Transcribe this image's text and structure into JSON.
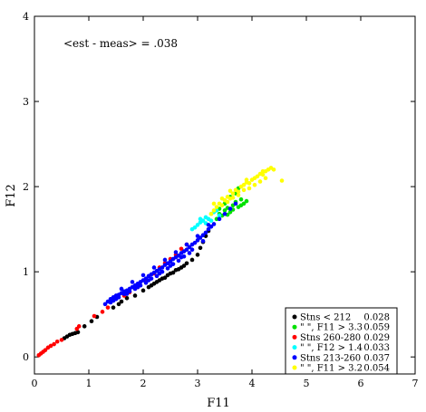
{
  "chart_data": {
    "type": "scatter",
    "title": "",
    "xlabel": "F11",
    "ylabel": "F12",
    "xlim": [
      0,
      7
    ],
    "ylim": [
      -0.2,
      4
    ],
    "x_ticks": [
      0,
      1,
      2,
      3,
      4,
      5,
      6,
      7
    ],
    "y_ticks": [
      0,
      1,
      2,
      3,
      4
    ],
    "x_tick_labels": [
      "0",
      "1",
      "2",
      "3",
      "4",
      "5",
      "6",
      "7"
    ],
    "y_tick_labels": [
      "0",
      "1",
      "2",
      "3",
      "4"
    ],
    "grid": false,
    "legend_position": "bottom-right",
    "annotation": "<est - meas> = .038",
    "series": [
      {
        "name": "Stns < 212",
        "color": "#000000",
        "stat": "0.028",
        "points": [
          [
            0.55,
            0.22
          ],
          [
            0.6,
            0.24
          ],
          [
            0.65,
            0.26
          ],
          [
            0.7,
            0.27
          ],
          [
            0.75,
            0.28
          ],
          [
            0.8,
            0.29
          ],
          [
            0.92,
            0.36
          ],
          [
            1.05,
            0.42
          ],
          [
            1.15,
            0.47
          ],
          [
            1.45,
            0.58
          ],
          [
            1.55,
            0.62
          ],
          [
            1.6,
            0.65
          ],
          [
            1.7,
            0.69
          ],
          [
            1.85,
            0.72
          ],
          [
            2.0,
            0.78
          ],
          [
            2.1,
            0.82
          ],
          [
            2.15,
            0.84
          ],
          [
            2.2,
            0.86
          ],
          [
            2.25,
            0.88
          ],
          [
            2.3,
            0.9
          ],
          [
            2.35,
            0.92
          ],
          [
            2.4,
            0.93
          ],
          [
            2.45,
            0.96
          ],
          [
            2.5,
            0.98
          ],
          [
            2.6,
            1.02
          ],
          [
            2.7,
            1.05
          ],
          [
            2.8,
            1.1
          ],
          [
            2.9,
            1.14
          ],
          [
            3.0,
            1.2
          ],
          [
            3.05,
            1.28
          ],
          [
            3.1,
            1.35
          ],
          [
            3.15,
            1.42
          ],
          [
            3.2,
            1.48
          ],
          [
            2.55,
            0.99
          ],
          [
            2.65,
            1.03
          ],
          [
            2.75,
            1.07
          ]
        ]
      },
      {
        "name": "\" \", F11 > 3.3",
        "color": "#00e000",
        "stat": "0.059",
        "points": [
          [
            3.35,
            1.62
          ],
          [
            3.4,
            1.68
          ],
          [
            3.45,
            1.66
          ],
          [
            3.5,
            1.72
          ],
          [
            3.55,
            1.75
          ],
          [
            3.6,
            1.7
          ],
          [
            3.65,
            1.78
          ],
          [
            3.7,
            1.82
          ],
          [
            3.75,
            1.76
          ],
          [
            3.8,
            1.85
          ],
          [
            3.85,
            1.8
          ],
          [
            3.9,
            1.83
          ],
          [
            3.5,
            1.8
          ],
          [
            3.6,
            1.88
          ],
          [
            3.7,
            1.92
          ],
          [
            3.75,
            1.98
          ],
          [
            3.4,
            1.74
          ],
          [
            3.55,
            1.67
          ],
          [
            3.65,
            1.73
          ],
          [
            3.8,
            1.78
          ]
        ]
      },
      {
        "name": "Stns 260-280",
        "color": "#ff0000",
        "stat": "0.029",
        "points": [
          [
            0.08,
            0.02
          ],
          [
            0.12,
            0.04
          ],
          [
            0.16,
            0.06
          ],
          [
            0.2,
            0.08
          ],
          [
            0.25,
            0.11
          ],
          [
            0.3,
            0.13
          ],
          [
            0.36,
            0.15
          ],
          [
            0.42,
            0.18
          ],
          [
            0.5,
            0.2
          ],
          [
            0.78,
            0.33
          ],
          [
            0.82,
            0.36
          ],
          [
            1.1,
            0.48
          ],
          [
            1.25,
            0.53
          ],
          [
            1.35,
            0.58
          ],
          [
            1.65,
            0.72
          ],
          [
            1.75,
            0.76
          ],
          [
            1.9,
            0.82
          ],
          [
            2.05,
            0.9
          ],
          [
            2.2,
            0.98
          ],
          [
            2.3,
            1.05
          ],
          [
            2.4,
            1.1
          ],
          [
            2.5,
            1.15
          ],
          [
            2.6,
            1.2
          ],
          [
            2.7,
            1.27
          ],
          [
            2.8,
            1.32
          ]
        ]
      },
      {
        "name": "\" \", F12 > 1.4",
        "color": "#00ffff",
        "stat": "0.033",
        "points": [
          [
            2.95,
            1.52
          ],
          [
            3.0,
            1.55
          ],
          [
            3.05,
            1.58
          ],
          [
            3.1,
            1.6
          ],
          [
            3.15,
            1.64
          ],
          [
            3.2,
            1.62
          ],
          [
            3.25,
            1.68
          ],
          [
            3.3,
            1.7
          ],
          [
            3.35,
            1.72
          ],
          [
            3.05,
            1.62
          ],
          [
            3.15,
            1.57
          ],
          [
            3.25,
            1.6
          ],
          [
            2.9,
            1.5
          ],
          [
            3.4,
            1.66
          ]
        ]
      },
      {
        "name": "Stns 213-260",
        "color": "#0000ff",
        "stat": "0.037",
        "points": [
          [
            1.3,
            0.62
          ],
          [
            1.35,
            0.65
          ],
          [
            1.4,
            0.68
          ],
          [
            1.45,
            0.7
          ],
          [
            1.5,
            0.72
          ],
          [
            1.55,
            0.73
          ],
          [
            1.6,
            0.75
          ],
          [
            1.65,
            0.77
          ],
          [
            1.7,
            0.78
          ],
          [
            1.75,
            0.8
          ],
          [
            1.8,
            0.82
          ],
          [
            1.85,
            0.84
          ],
          [
            1.9,
            0.86
          ],
          [
            1.95,
            0.88
          ],
          [
            2.0,
            0.9
          ],
          [
            2.05,
            0.92
          ],
          [
            2.1,
            0.95
          ],
          [
            2.15,
            0.97
          ],
          [
            2.2,
            0.99
          ],
          [
            2.25,
            1.01
          ],
          [
            2.3,
            1.03
          ],
          [
            2.35,
            1.05
          ],
          [
            2.4,
            1.08
          ],
          [
            2.45,
            1.1
          ],
          [
            2.5,
            1.12
          ],
          [
            2.55,
            1.15
          ],
          [
            2.6,
            1.17
          ],
          [
            2.65,
            1.19
          ],
          [
            2.7,
            1.22
          ],
          [
            2.75,
            1.24
          ],
          [
            2.8,
            1.26
          ],
          [
            2.85,
            1.29
          ],
          [
            2.9,
            1.32
          ],
          [
            2.95,
            1.34
          ],
          [
            3.0,
            1.37
          ],
          [
            3.05,
            1.4
          ],
          [
            3.1,
            1.43
          ],
          [
            3.15,
            1.46
          ],
          [
            3.2,
            1.5
          ],
          [
            3.25,
            1.53
          ],
          [
            3.3,
            1.56
          ],
          [
            1.5,
            0.68
          ],
          [
            1.7,
            0.74
          ],
          [
            1.9,
            0.82
          ],
          [
            2.1,
            0.9
          ],
          [
            2.3,
            0.98
          ],
          [
            2.5,
            1.07
          ],
          [
            2.7,
            1.17
          ],
          [
            2.9,
            1.26
          ],
          [
            3.1,
            1.36
          ],
          [
            1.6,
            0.8
          ],
          [
            1.8,
            0.88
          ],
          [
            2.0,
            0.96
          ],
          [
            2.2,
            1.05
          ],
          [
            2.4,
            1.14
          ],
          [
            2.6,
            1.23
          ],
          [
            2.8,
            1.32
          ],
          [
            3.0,
            1.42
          ],
          [
            3.2,
            1.55
          ],
          [
            3.4,
            1.62
          ],
          [
            3.5,
            1.68
          ],
          [
            3.6,
            1.74
          ],
          [
            3.7,
            1.8
          ],
          [
            1.4,
            0.64
          ],
          [
            2.35,
            1.0
          ],
          [
            2.45,
            1.04
          ],
          [
            2.55,
            1.09
          ],
          [
            2.65,
            1.13
          ],
          [
            2.75,
            1.18
          ],
          [
            2.85,
            1.22
          ],
          [
            1.45,
            0.66
          ],
          [
            1.55,
            0.7
          ],
          [
            1.65,
            0.74
          ],
          [
            1.75,
            0.77
          ],
          [
            1.85,
            0.8
          ],
          [
            1.95,
            0.84
          ],
          [
            2.05,
            0.87
          ],
          [
            2.15,
            0.92
          ],
          [
            2.25,
            0.95
          ]
        ]
      },
      {
        "name": "\" \", F11 > 3.2",
        "color": "#ffff00",
        "stat": "0.054",
        "points": [
          [
            3.25,
            1.68
          ],
          [
            3.3,
            1.72
          ],
          [
            3.35,
            1.76
          ],
          [
            3.4,
            1.8
          ],
          [
            3.45,
            1.78
          ],
          [
            3.5,
            1.84
          ],
          [
            3.55,
            1.88
          ],
          [
            3.6,
            1.86
          ],
          [
            3.65,
            1.92
          ],
          [
            3.7,
            1.96
          ],
          [
            3.75,
            1.94
          ],
          [
            3.8,
            2.0
          ],
          [
            3.85,
            2.02
          ],
          [
            3.9,
            2.05
          ],
          [
            3.95,
            2.04
          ],
          [
            4.0,
            2.08
          ],
          [
            4.05,
            2.1
          ],
          [
            4.1,
            2.12
          ],
          [
            4.15,
            2.15
          ],
          [
            4.2,
            2.14
          ],
          [
            4.25,
            2.18
          ],
          [
            4.3,
            2.2
          ],
          [
            4.35,
            2.22
          ],
          [
            4.4,
            2.2
          ],
          [
            4.55,
            2.07
          ],
          [
            3.45,
            1.86
          ],
          [
            3.55,
            1.82
          ],
          [
            3.65,
            1.87
          ],
          [
            3.75,
            1.9
          ],
          [
            3.85,
            1.96
          ],
          [
            3.95,
            1.98
          ],
          [
            4.05,
            2.02
          ],
          [
            4.15,
            2.06
          ],
          [
            4.25,
            2.1
          ],
          [
            3.3,
            1.8
          ],
          [
            3.6,
            1.95
          ],
          [
            3.9,
            2.08
          ],
          [
            4.2,
            2.18
          ]
        ]
      }
    ]
  }
}
